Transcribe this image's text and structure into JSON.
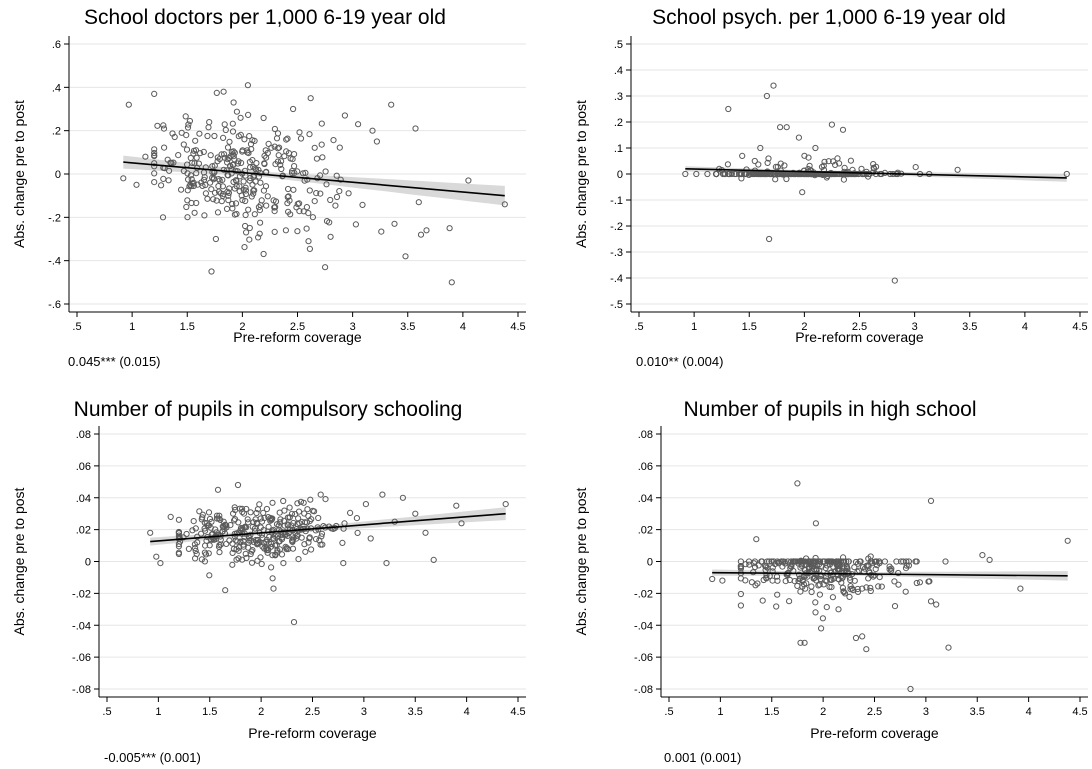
{
  "chart_data": [
    {
      "type": "scatter",
      "title": "School doctors per 1,000 6-19 year old",
      "xlabel": "Pre-reform coverage",
      "ylabel": "Abs. change pre to post",
      "xlim": [
        0.5,
        4.5
      ],
      "ylim": [
        -0.6,
        0.6
      ],
      "x_ticks": [
        0.5,
        1,
        1.5,
        2,
        2.5,
        3,
        3.5,
        4,
        4.5
      ],
      "x_tick_labels": [
        ".5",
        "1",
        "1.5",
        "2",
        "2.5",
        "3",
        "3.5",
        "4",
        "4.5"
      ],
      "y_ticks": [
        -0.6,
        -0.4,
        -0.2,
        0,
        0.2,
        0.4,
        0.6
      ],
      "y_tick_labels": [
        "-.6",
        "-.4",
        "-.2",
        "0",
        ".2",
        ".4",
        ".6"
      ],
      "coefficient_text": "0.045*** (0.015)",
      "fit": {
        "x": [
          0.92,
          4.38
        ],
        "y": [
          0.055,
          -0.1
        ]
      },
      "ci_band_halfwidth": {
        "x": [
          0.92,
          2.2,
          4.38
        ],
        "w": [
          0.03,
          0.012,
          0.045
        ]
      },
      "scatter_cluster": {
        "center_x": 2.0,
        "sd_x": 0.42,
        "sd_y": 0.12,
        "n": 330
      },
      "points": [
        {
          "x": 0.97,
          "y": 0.32
        },
        {
          "x": 0.92,
          "y": -0.02
        },
        {
          "x": 1.04,
          "y": -0.05
        },
        {
          "x": 1.12,
          "y": 0.08
        },
        {
          "x": 1.28,
          "y": -0.2
        },
        {
          "x": 1.45,
          "y": 0.19
        },
        {
          "x": 1.72,
          "y": -0.45
        },
        {
          "x": 1.76,
          "y": -0.3
        },
        {
          "x": 1.83,
          "y": 0.38
        },
        {
          "x": 1.92,
          "y": 0.33
        },
        {
          "x": 2.05,
          "y": 0.41
        },
        {
          "x": 2.46,
          "y": 0.3
        },
        {
          "x": 2.62,
          "y": 0.35
        },
        {
          "x": 2.6,
          "y": -0.31
        },
        {
          "x": 2.75,
          "y": -0.43
        },
        {
          "x": 2.93,
          "y": 0.27
        },
        {
          "x": 3.05,
          "y": 0.23
        },
        {
          "x": 3.18,
          "y": 0.2
        },
        {
          "x": 3.22,
          "y": 0.15
        },
        {
          "x": 3.35,
          "y": 0.32
        },
        {
          "x": 3.38,
          "y": -0.23
        },
        {
          "x": 3.48,
          "y": -0.38
        },
        {
          "x": 3.57,
          "y": 0.21
        },
        {
          "x": 3.6,
          "y": -0.13
        },
        {
          "x": 3.62,
          "y": -0.28
        },
        {
          "x": 3.67,
          "y": -0.26
        },
        {
          "x": 3.88,
          "y": -0.25
        },
        {
          "x": 3.9,
          "y": -0.5
        },
        {
          "x": 4.05,
          "y": -0.03
        },
        {
          "x": 4.38,
          "y": -0.14
        },
        {
          "x": 2.8,
          "y": -0.29
        },
        {
          "x": 2.0,
          "y": -0.12
        }
      ]
    },
    {
      "type": "scatter",
      "title": "School psych. per 1,000 6-19 year old",
      "xlabel": "Pre-reform coverage",
      "ylabel": "Abs. change pre to post",
      "xlim": [
        0.5,
        4.5
      ],
      "ylim": [
        -0.5,
        0.5
      ],
      "x_ticks": [
        0.5,
        1,
        1.5,
        2,
        2.5,
        3,
        3.5,
        4,
        4.5
      ],
      "x_tick_labels": [
        ".5",
        "1",
        "1.5",
        "2",
        "2.5",
        "3",
        "3.5",
        "4",
        "4.5"
      ],
      "y_ticks": [
        -0.5,
        -0.4,
        -0.3,
        -0.2,
        -0.1,
        0,
        0.1,
        0.2,
        0.3,
        0.4,
        0.5
      ],
      "y_tick_labels": [
        "-.5",
        "-.4",
        "-.3",
        "-.2",
        "-.1",
        "0",
        ".1",
        ".2",
        ".3",
        ".4",
        ".5"
      ],
      "coefficient_text": "0.010** (0.004)",
      "fit": {
        "x": [
          0.92,
          4.38
        ],
        "y": [
          0.02,
          -0.015
        ]
      },
      "ci_band_halfwidth": {
        "x": [
          0.92,
          2.2,
          4.38
        ],
        "w": [
          0.01,
          0.004,
          0.015
        ]
      },
      "scatter_cluster": {
        "center_x": 2.0,
        "sd_x": 0.42,
        "sd_y": 0.012,
        "n": 300
      },
      "points": [
        {
          "x": 0.92,
          "y": 0.0
        },
        {
          "x": 1.02,
          "y": 0.0
        },
        {
          "x": 1.12,
          "y": 0.0
        },
        {
          "x": 1.31,
          "y": 0.25
        },
        {
          "x": 1.66,
          "y": 0.3
        },
        {
          "x": 1.72,
          "y": 0.34
        },
        {
          "x": 1.68,
          "y": -0.25
        },
        {
          "x": 1.78,
          "y": 0.18
        },
        {
          "x": 1.84,
          "y": 0.18
        },
        {
          "x": 1.95,
          "y": 0.14
        },
        {
          "x": 1.98,
          "y": -0.07
        },
        {
          "x": 2.1,
          "y": 0.1
        },
        {
          "x": 2.25,
          "y": 0.19
        },
        {
          "x": 2.35,
          "y": 0.17
        },
        {
          "x": 2.82,
          "y": -0.41
        },
        {
          "x": 1.6,
          "y": 0.1
        },
        {
          "x": 1.55,
          "y": 0.05
        },
        {
          "x": 2.0,
          "y": 0.07
        },
        {
          "x": 2.3,
          "y": 0.06
        },
        {
          "x": 4.38,
          "y": 0.0
        }
      ]
    },
    {
      "type": "scatter",
      "title": "Number of pupils in compulsory schooling",
      "xlabel": "Pre-reform coverage",
      "ylabel": "Abs. change pre to post",
      "xlim": [
        0.5,
        4.5
      ],
      "ylim": [
        -0.08,
        0.08
      ],
      "x_ticks": [
        0.5,
        1,
        1.5,
        2,
        2.5,
        3,
        3.5,
        4,
        4.5
      ],
      "x_tick_labels": [
        ".5",
        "1",
        "1.5",
        "2",
        "2.5",
        "3",
        "3.5",
        "4",
        "4.5"
      ],
      "y_ticks": [
        -0.08,
        -0.06,
        -0.04,
        -0.02,
        0,
        0.02,
        0.04,
        0.06,
        0.08
      ],
      "y_tick_labels": [
        "-.08",
        "-.06",
        "-.04",
        "-.02",
        "0",
        ".02",
        ".04",
        ".06",
        ".08"
      ],
      "coefficient_text": "-0.005*** (0.001)",
      "fit": {
        "x": [
          0.92,
          4.38
        ],
        "y": [
          0.0125,
          0.03
        ]
      },
      "ci_band_halfwidth": {
        "x": [
          0.92,
          2.2,
          4.38
        ],
        "w": [
          0.0025,
          0.001,
          0.004
        ]
      },
      "scatter_cluster": {
        "center_x": 2.0,
        "sd_x": 0.42,
        "sd_y": 0.009,
        "n": 330
      },
      "points": [
        {
          "x": 0.92,
          "y": 0.018
        },
        {
          "x": 0.98,
          "y": 0.003
        },
        {
          "x": 1.02,
          "y": -0.001
        },
        {
          "x": 1.12,
          "y": 0.028
        },
        {
          "x": 1.58,
          "y": 0.045
        },
        {
          "x": 1.65,
          "y": -0.018
        },
        {
          "x": 1.78,
          "y": 0.002
        },
        {
          "x": 2.12,
          "y": -0.017
        },
        {
          "x": 2.32,
          "y": -0.038
        },
        {
          "x": 2.58,
          "y": 0.042
        },
        {
          "x": 2.8,
          "y": -0.001
        },
        {
          "x": 3.02,
          "y": 0.036
        },
        {
          "x": 3.18,
          "y": 0.042
        },
        {
          "x": 3.22,
          "y": -0.001
        },
        {
          "x": 3.38,
          "y": 0.04
        },
        {
          "x": 3.6,
          "y": 0.018
        },
        {
          "x": 3.68,
          "y": 0.001
        },
        {
          "x": 3.9,
          "y": 0.035
        },
        {
          "x": 3.95,
          "y": 0.024
        },
        {
          "x": 4.38,
          "y": 0.036
        },
        {
          "x": 3.5,
          "y": 0.03
        },
        {
          "x": 3.3,
          "y": 0.025
        }
      ]
    },
    {
      "type": "scatter",
      "title": "Number of pupils in high school",
      "xlabel": "Pre-reform coverage",
      "ylabel": "Abs. change pre to post",
      "xlim": [
        0.5,
        4.5
      ],
      "ylim": [
        -0.08,
        0.08
      ],
      "x_ticks": [
        0.5,
        1,
        1.5,
        2,
        2.5,
        3,
        3.5,
        4,
        4.5
      ],
      "x_tick_labels": [
        ".5",
        "1",
        "1.5",
        "2",
        "2.5",
        "3",
        "3.5",
        "4",
        "4.5"
      ],
      "y_ticks": [
        -0.08,
        -0.06,
        -0.04,
        -0.02,
        0,
        0.02,
        0.04,
        0.06,
        0.08
      ],
      "y_tick_labels": [
        "-.08",
        "-.06",
        "-.04",
        "-.02",
        "0",
        ".02",
        ".04",
        ".06",
        ".08"
      ],
      "coefficient_text": "0.001 (0.001)",
      "fit": {
        "x": [
          0.92,
          4.38
        ],
        "y": [
          -0.007,
          -0.009
        ]
      },
      "ci_band_halfwidth": {
        "x": [
          0.92,
          2.2,
          4.38
        ],
        "w": [
          0.002,
          0.001,
          0.003
        ]
      },
      "scatter_cluster": {
        "center_x": 2.0,
        "sd_x": 0.42,
        "sd_y": 0.011,
        "n": 320
      },
      "points": [
        {
          "x": 0.92,
          "y": -0.011
        },
        {
          "x": 1.02,
          "y": -0.012
        },
        {
          "x": 1.35,
          "y": 0.014
        },
        {
          "x": 1.75,
          "y": 0.049
        },
        {
          "x": 1.78,
          "y": -0.051
        },
        {
          "x": 1.82,
          "y": -0.051
        },
        {
          "x": 1.93,
          "y": 0.024
        },
        {
          "x": 1.98,
          "y": -0.042
        },
        {
          "x": 2.15,
          "y": -0.03
        },
        {
          "x": 2.32,
          "y": -0.048
        },
        {
          "x": 2.42,
          "y": -0.055
        },
        {
          "x": 2.38,
          "y": -0.047
        },
        {
          "x": 2.85,
          "y": -0.08
        },
        {
          "x": 3.05,
          "y": 0.038
        },
        {
          "x": 3.22,
          "y": -0.054
        },
        {
          "x": 3.55,
          "y": 0.004
        },
        {
          "x": 3.62,
          "y": 0.001
        },
        {
          "x": 3.92,
          "y": -0.017
        },
        {
          "x": 4.38,
          "y": 0.013
        },
        {
          "x": 3.1,
          "y": -0.027
        },
        {
          "x": 3.05,
          "y": -0.025
        },
        {
          "x": 2.7,
          "y": -0.028
        }
      ]
    }
  ]
}
